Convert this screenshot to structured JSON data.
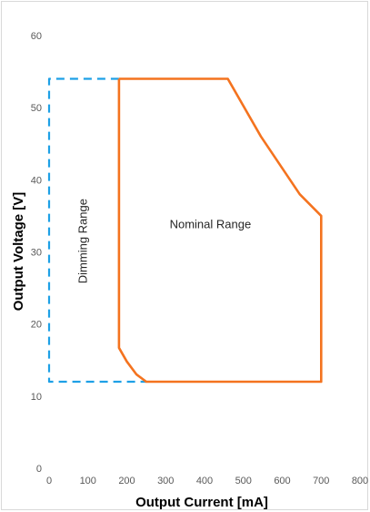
{
  "chart_data": {
    "type": "area",
    "xlabel": "Output Current [mA]",
    "ylabel": "Output Voltage [V]",
    "xlim": [
      0,
      800
    ],
    "ylim": [
      0,
      60
    ],
    "x_ticks": [
      0,
      100,
      200,
      300,
      400,
      500,
      600,
      700,
      800
    ],
    "y_ticks": [
      0,
      10,
      20,
      30,
      40,
      50,
      60
    ],
    "grid": false,
    "series": [
      {
        "name": "Nominal Range",
        "color": "#f4731f",
        "style": "solid",
        "points": [
          [
            180,
            54
          ],
          [
            460,
            54
          ],
          [
            545,
            46
          ],
          [
            645,
            38
          ],
          [
            700,
            35
          ],
          [
            700,
            12
          ],
          [
            250,
            12
          ],
          [
            225,
            13
          ],
          [
            200,
            14.8
          ],
          [
            180,
            16.7
          ],
          [
            180,
            54
          ]
        ]
      },
      {
        "name": "Dimming Range",
        "color": "#1ea0e6",
        "style": "dashed",
        "points": [
          [
            180,
            54
          ],
          [
            0,
            54
          ],
          [
            0,
            12
          ],
          [
            250,
            12
          ]
        ]
      }
    ],
    "annotations": [
      {
        "text": "Nominal Range",
        "x": 415,
        "y": 33.3
      },
      {
        "text": "Dimming Range",
        "x": 97,
        "y": 31.5,
        "rotation": -90
      }
    ]
  }
}
